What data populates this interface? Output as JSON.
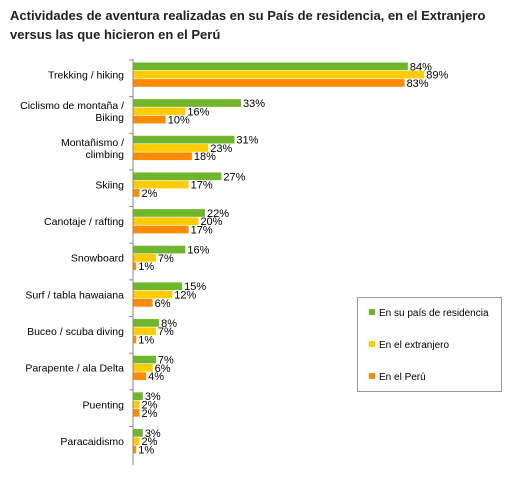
{
  "chart_data": {
    "type": "bar",
    "orientation": "horizontal",
    "title": "Actividades de aventura realizadas en su País de residencia, en el Extranjero versus las que hicieron en el Perú",
    "categories": [
      "Trekking / hiking",
      "Ciclismo de montaña / Biking",
      "Montañismo / climbing",
      "Skiing",
      "Canotaje / rafting",
      "Snowboard",
      "Surf / tabla hawaiana",
      "Buceo / scuba diving",
      "Parapente / ala Delta",
      "Puenting",
      "Paracaidismo"
    ],
    "series": [
      {
        "name": "En su país de residencia",
        "color": "#6fb62c",
        "values": [
          84,
          33,
          31,
          27,
          22,
          16,
          15,
          8,
          7,
          3,
          3
        ]
      },
      {
        "name": "En el extranjero",
        "color": "#ffcc00",
        "values": [
          89,
          16,
          23,
          17,
          20,
          7,
          12,
          7,
          6,
          2,
          2
        ]
      },
      {
        "name": "En el Perú",
        "color": "#ff8c00",
        "values": [
          83,
          10,
          18,
          2,
          17,
          1,
          6,
          1,
          4,
          2,
          1
        ]
      }
    ],
    "value_suffix": "%",
    "xlim": [
      0,
      100
    ],
    "grid": false,
    "legend_position": "bottom-right"
  }
}
